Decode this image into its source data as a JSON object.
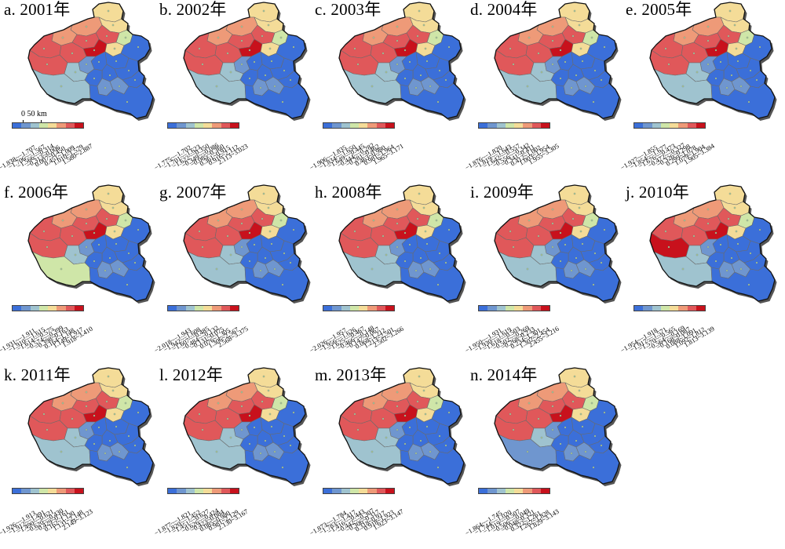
{
  "palette": [
    "#3b6fd9",
    "#6f96cf",
    "#9fc3cf",
    "#cfe6a8",
    "#f4dc98",
    "#ee9a78",
    "#e0585a",
    "#c8111c"
  ],
  "scalebar_label": "0  50 km",
  "panels": [
    {
      "title": "a. 2001年",
      "ranges": [
        "−1.838~−1.707",
        "−1.706~−1.567",
        "−1.566~−0.314",
        "−0.313~0.006",
        "0.007~0.450",
        "0.451~1.009",
        "1.010~1.579",
        "1.580~2.887"
      ],
      "regions": [
        4,
        4,
        5,
        6,
        3,
        5,
        6,
        7,
        6,
        6,
        6,
        4,
        0,
        0,
        0,
        1,
        2,
        0,
        0,
        0,
        2,
        1,
        1,
        0,
        0
      ]
    },
    {
      "title": "b. 2002年",
      "ranges": [
        "−1.775~−1.702",
        "−1.701~−1.623",
        "−1.622~−0.350",
        "−0.349~−0.086",
        "−0.085~0.360",
        "0.361~0.915",
        "0.916~2.112",
        "2.113~3.023"
      ],
      "regions": [
        4,
        4,
        5,
        6,
        3,
        5,
        6,
        7,
        6,
        6,
        6,
        4,
        0,
        0,
        0,
        1,
        2,
        0,
        0,
        0,
        2,
        1,
        1,
        0,
        0
      ]
    },
    {
      "title": "c. 2003年",
      "ranges": [
        "−1.906~−1.835",
        "−1.834~−1.650",
        "−1.649~−0.445",
        "−0.444~−0.282",
        "−0.281~0.462",
        "0.463~0.980",
        "0.981~1.964",
        "1.965~3.171"
      ],
      "regions": [
        4,
        4,
        5,
        6,
        3,
        5,
        6,
        7,
        6,
        6,
        6,
        4,
        0,
        0,
        0,
        1,
        2,
        0,
        0,
        0,
        2,
        1,
        1,
        0,
        0
      ]
    },
    {
      "title": "d. 2004年",
      "ranges": [
        "−1.876~−1.820",
        "−1.819~−1.643",
        "−1.642~−0.557",
        "−0.556~−0.342",
        "−0.341~0.411",
        "0.412~1.002",
        "1.003~1.954",
        "1.955~3.305"
      ],
      "regions": [
        4,
        4,
        5,
        6,
        3,
        5,
        6,
        7,
        6,
        6,
        6,
        4,
        0,
        0,
        0,
        1,
        2,
        0,
        0,
        0,
        2,
        1,
        1,
        0,
        0
      ]
    },
    {
      "title": "e. 2005年",
      "ranges": [
        "−1.927~−1.855",
        "−1.854~−1.677",
        "−1.676~−0.473",
        "−0.472~−0.327",
        "−0.326~0.298",
        "0.299~1.078",
        "1.079~1.904",
        "1.905~3.384"
      ],
      "regions": [
        4,
        4,
        5,
        6,
        3,
        5,
        6,
        7,
        6,
        6,
        6,
        4,
        0,
        0,
        0,
        1,
        2,
        0,
        0,
        0,
        2,
        1,
        1,
        0,
        0
      ]
    },
    {
      "title": "f. 2006年",
      "ranges": [
        "−1.931~−1.911",
        "−1.910~−1.615",
        "−1.614~−0.575",
        "−0.574~−0.399",
        "−0.398~0.163",
        "0.164~1.148",
        "1.149~1.917",
        "1.918~3.410"
      ],
      "regions": [
        4,
        4,
        5,
        6,
        3,
        5,
        6,
        7,
        6,
        6,
        6,
        4,
        0,
        0,
        0,
        1,
        2,
        0,
        0,
        0,
        3,
        1,
        1,
        0,
        0
      ]
    },
    {
      "title": "g. 2007年",
      "ranges": [
        "−2.018~−1.943",
        "−1.942~−1.608",
        "−1.607~−0.485",
        "−0.484~−0.132",
        "−0.131~0.075",
        "0.076~1.305",
        "1.306~2.567",
        "2.568~3.375"
      ],
      "regions": [
        4,
        4,
        5,
        6,
        3,
        5,
        6,
        7,
        6,
        6,
        6,
        4,
        0,
        0,
        0,
        1,
        2,
        0,
        0,
        0,
        2,
        1,
        1,
        0,
        0
      ]
    },
    {
      "title": "h. 2008年",
      "ranges": [
        "−2.026~−1.957",
        "−1.956~−1.626",
        "−1.625~−0.467",
        "−0.466~−0.148",
        "−0.147~0.067",
        "0.068~1.212",
        "1.213~2.501",
        "2.502~3.266"
      ],
      "regions": [
        4,
        4,
        5,
        6,
        3,
        5,
        6,
        7,
        6,
        6,
        6,
        4,
        0,
        0,
        0,
        1,
        2,
        0,
        0,
        0,
        2,
        1,
        1,
        0,
        0
      ]
    },
    {
      "title": "i. 2009年",
      "ranges": [
        "−1.950~−1.931",
        "−1.930~−1.619",
        "−1.618~−0.503",
        "−0.502~−0.269",
        "−0.268~0.233",
        "0.234~1.301",
        "1.302~2.454",
        "2.455~3.216"
      ],
      "regions": [
        4,
        4,
        5,
        6,
        3,
        5,
        6,
        7,
        6,
        6,
        6,
        4,
        0,
        0,
        0,
        1,
        2,
        0,
        0,
        0,
        2,
        1,
        1,
        0,
        0
      ]
    },
    {
      "title": "j. 2010年",
      "ranges": [
        "−1.954~−1.918",
        "−1.917~−1.571",
        "−1.570~−0.565",
        "−0.564~−0.169",
        "−0.168~0.087",
        "0.088~1.091",
        "1.092~1.812",
        "1.813~3.139"
      ],
      "regions": [
        4,
        4,
        5,
        6,
        3,
        5,
        6,
        7,
        6,
        6,
        7,
        4,
        0,
        0,
        0,
        1,
        2,
        0,
        0,
        0,
        2,
        1,
        1,
        0,
        0
      ]
    },
    {
      "title": "k. 2011年",
      "ranges": [
        "−1.926~−1.913",
        "−1.912~−1.491",
        "−1.490~−0.621",
        "−0.620~−0.430",
        "−0.429~0.161",
        "0.162~1.130",
        "1.131~2.148",
        "2.149~3.123"
      ],
      "regions": [
        4,
        4,
        5,
        6,
        3,
        5,
        6,
        7,
        6,
        6,
        6,
        4,
        0,
        0,
        0,
        1,
        2,
        0,
        0,
        0,
        2,
        1,
        1,
        0,
        0
      ]
    },
    {
      "title": "l. 2012年",
      "ranges": [
        "−1.877~−1.821",
        "−1.820~−1.452",
        "−1.451~−0.627",
        "−0.626~−0.424",
        "−0.423~0.084",
        "0.085~0.980",
        "0.981~2.129",
        "2.130~3.167"
      ],
      "regions": [
        4,
        4,
        5,
        6,
        3,
        5,
        6,
        7,
        6,
        6,
        6,
        4,
        0,
        0,
        0,
        1,
        2,
        0,
        0,
        0,
        2,
        1,
        1,
        0,
        0
      ]
    },
    {
      "title": "m. 2013年",
      "ranges": [
        "−1.873~−1.784",
        "−1.783~−1.417",
        "−1.416~−0.443",
        "−0.442~−0.307",
        "−0.306~0.317",
        "0.318~0.917",
        "0.918~1.923",
        "1.923~3.147"
      ],
      "regions": [
        4,
        4,
        5,
        6,
        3,
        5,
        6,
        7,
        6,
        6,
        6,
        4,
        0,
        0,
        0,
        1,
        2,
        0,
        0,
        0,
        2,
        1,
        1,
        0,
        0
      ]
    },
    {
      "title": "n. 2014年",
      "ranges": [
        "−1.864~−1.745",
        "−1.744~−1.020",
        "−1.019~−0.507",
        "−0.506~−0.049",
        "−0.048~0.321",
        "0.322~1.261",
        "1.262~1.828",
        "1.829~3.143"
      ],
      "regions": [
        4,
        4,
        5,
        6,
        3,
        5,
        6,
        7,
        6,
        6,
        6,
        4,
        0,
        0,
        0,
        1,
        2,
        0,
        0,
        0,
        1,
        1,
        1,
        0,
        0
      ]
    }
  ]
}
